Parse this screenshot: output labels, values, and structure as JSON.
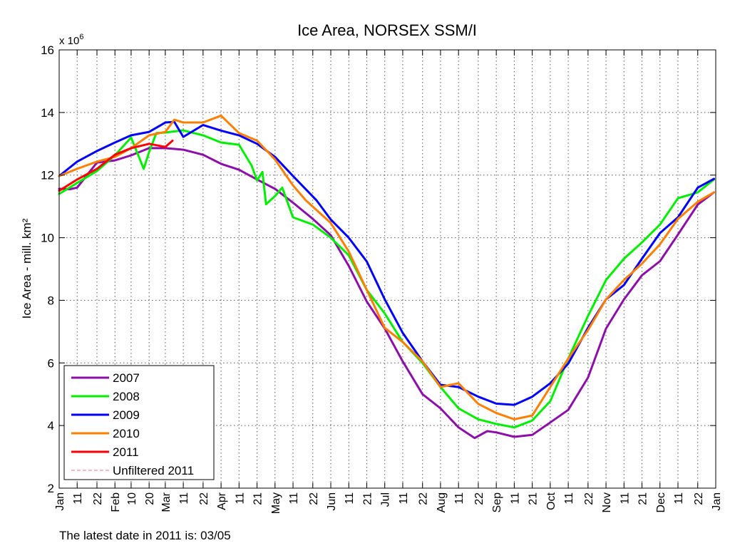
{
  "chart_data": {
    "type": "line",
    "title": "Ice Area, NORSEX SSM/I",
    "ylabel": "Ice Area - mill. km²",
    "y_multiplier": {
      "base": "x 10",
      "exponent": "6"
    },
    "ylim": [
      2,
      16
    ],
    "yticks": [
      2,
      4,
      6,
      8,
      10,
      12,
      14,
      16
    ],
    "grid": true,
    "legend_placement": "bottom-left",
    "xticks": [
      {
        "label": "Jan",
        "date": "01-01"
      },
      {
        "label": "11",
        "date": "01-11"
      },
      {
        "label": "22",
        "date": "01-22"
      },
      {
        "label": "Feb",
        "date": "02-01"
      },
      {
        "label": "10",
        "date": "02-10"
      },
      {
        "label": "20",
        "date": "02-20"
      },
      {
        "label": "Mar",
        "date": "03-01"
      },
      {
        "label": "11",
        "date": "03-11"
      },
      {
        "label": "22",
        "date": "03-22"
      },
      {
        "label": "Apr",
        "date": "04-01"
      },
      {
        "label": "11",
        "date": "04-11"
      },
      {
        "label": "21",
        "date": "04-21"
      },
      {
        "label": "May",
        "date": "05-01"
      },
      {
        "label": "11",
        "date": "05-11"
      },
      {
        "label": "22",
        "date": "05-22"
      },
      {
        "label": "Jun",
        "date": "06-01"
      },
      {
        "label": "11",
        "date": "06-11"
      },
      {
        "label": "21",
        "date": "06-21"
      },
      {
        "label": "Jul",
        "date": "07-01"
      },
      {
        "label": "11",
        "date": "07-11"
      },
      {
        "label": "22",
        "date": "07-22"
      },
      {
        "label": "Aug",
        "date": "08-01"
      },
      {
        "label": "11",
        "date": "08-11"
      },
      {
        "label": "22",
        "date": "08-22"
      },
      {
        "label": "Sep",
        "date": "09-01"
      },
      {
        "label": "11",
        "date": "09-11"
      },
      {
        "label": "21",
        "date": "09-21"
      },
      {
        "label": "Oct",
        "date": "10-01"
      },
      {
        "label": "11",
        "date": "10-11"
      },
      {
        "label": "22",
        "date": "10-22"
      },
      {
        "label": "Nov",
        "date": "11-01"
      },
      {
        "label": "11",
        "date": "11-11"
      },
      {
        "label": "21",
        "date": "11-21"
      },
      {
        "label": "Dec",
        "date": "12-01"
      },
      {
        "label": "11",
        "date": "12-11"
      },
      {
        "label": "22",
        "date": "12-22"
      },
      {
        "label": "Jan",
        "date": "12-31+"
      }
    ],
    "series": [
      {
        "name": "2007",
        "color": "#8b0fa8",
        "points": [
          [
            "01-01",
            11.56
          ],
          [
            "01-07",
            11.55
          ],
          [
            "01-11",
            11.6
          ],
          [
            "01-22",
            12.4
          ],
          [
            "02-01",
            12.47
          ],
          [
            "02-10",
            12.63
          ],
          [
            "02-20",
            12.86
          ],
          [
            "03-01",
            12.86
          ],
          [
            "03-11",
            12.81
          ],
          [
            "03-22",
            12.65
          ],
          [
            "04-01",
            12.36
          ],
          [
            "04-11",
            12.17
          ],
          [
            "04-21",
            11.86
          ],
          [
            "05-01",
            11.56
          ],
          [
            "05-11",
            11.12
          ],
          [
            "05-22",
            10.6
          ],
          [
            "06-01",
            10.08
          ],
          [
            "06-11",
            9.1
          ],
          [
            "06-21",
            7.96
          ],
          [
            "07-01",
            7.1
          ],
          [
            "07-11",
            6.05
          ],
          [
            "07-22",
            5.0
          ],
          [
            "08-01",
            4.55
          ],
          [
            "08-11",
            3.94
          ],
          [
            "08-20",
            3.6
          ],
          [
            "08-27",
            3.82
          ],
          [
            "09-01",
            3.78
          ],
          [
            "09-11",
            3.64
          ],
          [
            "09-21",
            3.7
          ],
          [
            "10-01",
            4.1
          ],
          [
            "10-11",
            4.5
          ],
          [
            "10-22",
            5.53
          ],
          [
            "11-01",
            7.1
          ],
          [
            "11-11",
            8.03
          ],
          [
            "11-21",
            8.8
          ],
          [
            "12-01",
            9.25
          ],
          [
            "12-11",
            10.1
          ],
          [
            "12-22",
            11.06
          ],
          [
            "12-31",
            11.45
          ]
        ]
      },
      {
        "name": "2008",
        "color": "#00ee00",
        "points": [
          [
            "01-01",
            11.4
          ],
          [
            "01-11",
            11.75
          ],
          [
            "01-22",
            12.13
          ],
          [
            "02-01",
            12.63
          ],
          [
            "02-10",
            13.2
          ],
          [
            "02-17",
            12.2
          ],
          [
            "02-20",
            12.74
          ],
          [
            "02-24",
            13.34
          ],
          [
            "03-01",
            13.36
          ],
          [
            "03-11",
            13.43
          ],
          [
            "03-22",
            13.27
          ],
          [
            "04-01",
            13.04
          ],
          [
            "04-11",
            12.97
          ],
          [
            "04-18",
            12.3
          ],
          [
            "04-21",
            11.83
          ],
          [
            "04-24",
            12.1
          ],
          [
            "04-26",
            11.07
          ],
          [
            "05-01",
            11.33
          ],
          [
            "05-05",
            11.6
          ],
          [
            "05-11",
            10.65
          ],
          [
            "05-22",
            10.42
          ],
          [
            "06-01",
            10.0
          ],
          [
            "06-11",
            9.44
          ],
          [
            "06-21",
            8.33
          ],
          [
            "07-01",
            7.58
          ],
          [
            "07-11",
            6.67
          ],
          [
            "07-22",
            6.0
          ],
          [
            "08-01",
            5.23
          ],
          [
            "08-11",
            4.55
          ],
          [
            "08-22",
            4.2
          ],
          [
            "09-01",
            4.05
          ],
          [
            "09-11",
            3.94
          ],
          [
            "09-21",
            4.16
          ],
          [
            "10-01",
            4.78
          ],
          [
            "10-11",
            6.14
          ],
          [
            "10-22",
            7.5
          ],
          [
            "11-01",
            8.65
          ],
          [
            "11-11",
            9.33
          ],
          [
            "11-21",
            9.85
          ],
          [
            "12-01",
            10.42
          ],
          [
            "12-11",
            11.26
          ],
          [
            "12-22",
            11.45
          ],
          [
            "12-31",
            11.86
          ]
        ]
      },
      {
        "name": "2009",
        "color": "#0000ff",
        "points": [
          [
            "01-01",
            11.97
          ],
          [
            "01-11",
            12.43
          ],
          [
            "01-22",
            12.77
          ],
          [
            "02-01",
            13.04
          ],
          [
            "02-10",
            13.27
          ],
          [
            "02-20",
            13.38
          ],
          [
            "03-01",
            13.68
          ],
          [
            "03-06",
            13.7
          ],
          [
            "03-11",
            13.22
          ],
          [
            "03-22",
            13.6
          ],
          [
            "04-01",
            13.42
          ],
          [
            "04-11",
            13.27
          ],
          [
            "04-21",
            13.0
          ],
          [
            "05-01",
            12.58
          ],
          [
            "05-11",
            11.97
          ],
          [
            "05-24",
            11.2
          ],
          [
            "06-01",
            10.58
          ],
          [
            "06-11",
            10.0
          ],
          [
            "06-21",
            9.24
          ],
          [
            "07-01",
            8.03
          ],
          [
            "07-11",
            6.96
          ],
          [
            "07-22",
            6.05
          ],
          [
            "08-01",
            5.3
          ],
          [
            "08-11",
            5.23
          ],
          [
            "08-22",
            4.92
          ],
          [
            "09-01",
            4.7
          ],
          [
            "09-11",
            4.66
          ],
          [
            "09-21",
            4.92
          ],
          [
            "10-01",
            5.35
          ],
          [
            "10-11",
            5.98
          ],
          [
            "10-22",
            7.12
          ],
          [
            "11-01",
            8.03
          ],
          [
            "11-11",
            8.49
          ],
          [
            "11-21",
            9.33
          ],
          [
            "12-01",
            10.15
          ],
          [
            "12-11",
            10.65
          ],
          [
            "12-22",
            11.6
          ],
          [
            "12-31",
            11.88
          ]
        ]
      },
      {
        "name": "2010",
        "color": "#ff7f00",
        "points": [
          [
            "01-01",
            11.97
          ],
          [
            "01-11",
            12.2
          ],
          [
            "01-22",
            12.43
          ],
          [
            "02-01",
            12.58
          ],
          [
            "02-10",
            12.86
          ],
          [
            "02-20",
            13.27
          ],
          [
            "03-01",
            13.38
          ],
          [
            "03-06",
            13.77
          ],
          [
            "03-11",
            13.68
          ],
          [
            "03-22",
            13.68
          ],
          [
            "04-01",
            13.9
          ],
          [
            "04-11",
            13.34
          ],
          [
            "04-21",
            13.1
          ],
          [
            "05-01",
            12.5
          ],
          [
            "05-11",
            11.67
          ],
          [
            "05-18",
            11.2
          ],
          [
            "06-01",
            10.47
          ],
          [
            "06-11",
            9.56
          ],
          [
            "06-21",
            8.33
          ],
          [
            "07-01",
            7.12
          ],
          [
            "07-11",
            6.67
          ],
          [
            "07-22",
            6.05
          ],
          [
            "08-01",
            5.23
          ],
          [
            "08-11",
            5.35
          ],
          [
            "08-22",
            4.69
          ],
          [
            "09-01",
            4.4
          ],
          [
            "09-11",
            4.2
          ],
          [
            "09-21",
            4.32
          ],
          [
            "10-01",
            5.23
          ],
          [
            "10-11",
            6.14
          ],
          [
            "10-22",
            7.05
          ],
          [
            "11-01",
            8.03
          ],
          [
            "11-11",
            8.65
          ],
          [
            "11-21",
            9.17
          ],
          [
            "12-01",
            9.79
          ],
          [
            "12-11",
            10.6
          ],
          [
            "12-22",
            11.15
          ],
          [
            "12-31",
            11.45
          ]
        ]
      },
      {
        "name": "2011",
        "color": "#ff0000",
        "points": [
          [
            "01-01",
            11.5
          ],
          [
            "01-11",
            11.86
          ],
          [
            "01-22",
            12.2
          ],
          [
            "02-01",
            12.65
          ],
          [
            "02-10",
            12.86
          ],
          [
            "02-20",
            13.0
          ],
          [
            "03-01",
            12.9
          ],
          [
            "03-05",
            13.1
          ]
        ]
      },
      {
        "name": "Unfiltered 2011",
        "color": "#e07080",
        "dashed": true,
        "points": []
      }
    ]
  },
  "footer": {
    "latest_date_text": "The latest date in 2011 is: 03/05"
  }
}
